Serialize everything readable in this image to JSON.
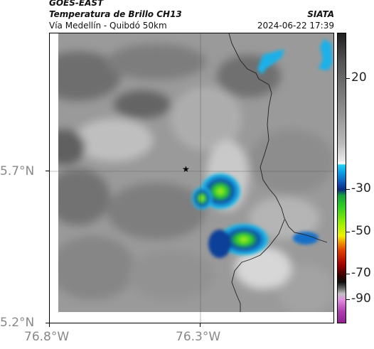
{
  "header": {
    "satellite": "GOES-EAST",
    "product": "Temperatura de Brillo CH13",
    "route": "Vía Medellín - Quibdó 50km",
    "source": "SIATA",
    "timestamp": "2024-06-22 17:39"
  },
  "map": {
    "x_ticks": [
      "76.8°W",
      "76.3°W"
    ],
    "y_ticks": [
      "5.7°N",
      "5.2°N"
    ],
    "marker": "star-icon"
  },
  "colorbar": {
    "labels": [
      "20",
      "-30",
      "-50",
      "-70",
      "-90"
    ],
    "units_hint": "°C"
  }
}
